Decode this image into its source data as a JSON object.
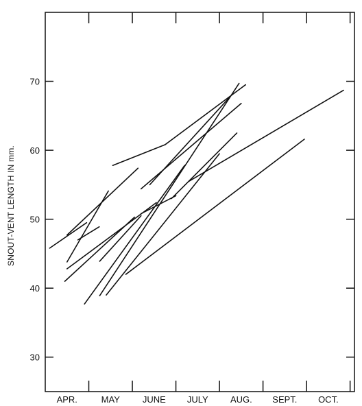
{
  "chart_data": {
    "type": "line",
    "title": "",
    "xlabel": "",
    "ylabel": "SNOUT-VENT LENGTH IN mm.",
    "x_ticks": [
      "APR.",
      "MAY",
      "JUNE",
      "JULY",
      "AUG.",
      "SEPT.",
      "OCT."
    ],
    "x_tick_positions": [
      0.5,
      1.5,
      2.5,
      3.5,
      4.5,
      5.5,
      6.5
    ],
    "xlim": [
      0,
      7.1
    ],
    "y_ticks": [
      30,
      40,
      50,
      60,
      70
    ],
    "ylim": [
      25,
      80
    ],
    "grid": false,
    "legend": "none",
    "line_color": "#111111",
    "series": [
      {
        "x": [
          0.5,
          2.13
        ],
        "y": [
          47.7,
          57.4
        ]
      },
      {
        "x": [
          0.1,
          0.95
        ],
        "y": [
          45.8,
          49.5
        ]
      },
      {
        "x": [
          0.5,
          1.45
        ],
        "y": [
          43.8,
          54.1
        ]
      },
      {
        "x": [
          0.75,
          1.24
        ],
        "y": [
          47.0,
          48.9
        ]
      },
      {
        "x": [
          0.5,
          2.55
        ],
        "y": [
          42.8,
          52.4
        ]
      },
      {
        "x": [
          0.45,
          2.05
        ],
        "y": [
          41.0,
          50.3
        ]
      },
      {
        "x": [
          1.25,
          2.2
        ],
        "y": [
          43.9,
          50.5
        ]
      },
      {
        "x": [
          1.55,
          2.75
        ],
        "y": [
          57.8,
          60.8
        ]
      },
      {
        "x": [
          2.75,
          4.6
        ],
        "y": [
          60.8,
          69.5
        ]
      },
      {
        "x": [
          2.2,
          4.5
        ],
        "y": [
          54.4,
          66.8
        ]
      },
      {
        "x": [
          2.4,
          4.25
        ],
        "y": [
          55.0,
          67.8
        ]
      },
      {
        "x": [
          2.2,
          3.0
        ],
        "y": [
          50.8,
          53.4
        ]
      },
      {
        "x": [
          2.9,
          4.4
        ],
        "y": [
          53.0,
          62.5
        ]
      },
      {
        "x": [
          3.3,
          6.85
        ],
        "y": [
          55.5,
          68.7
        ]
      },
      {
        "x": [
          0.9,
          3.2
        ],
        "y": [
          37.7,
          57.8
        ]
      },
      {
        "x": [
          1.25,
          4.45
        ],
        "y": [
          38.9,
          69.7
        ]
      },
      {
        "x": [
          1.4,
          4.0
        ],
        "y": [
          39.0,
          59.5
        ]
      },
      {
        "x": [
          1.85,
          5.95
        ],
        "y": [
          42.0,
          61.6
        ]
      }
    ]
  }
}
